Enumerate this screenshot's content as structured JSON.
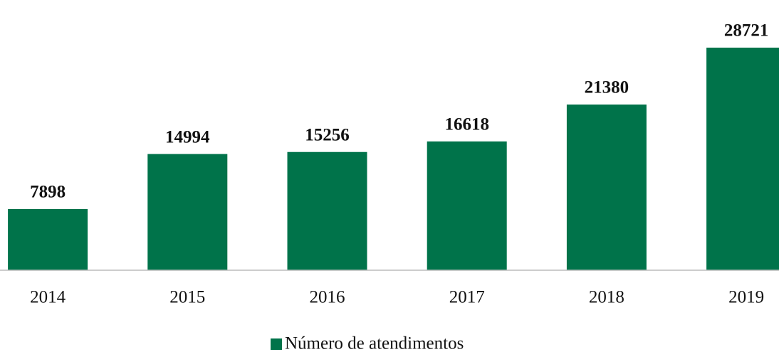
{
  "chart_data": {
    "type": "bar",
    "categories": [
      "2014",
      "2015",
      "2016",
      "2017",
      "2018",
      "2019"
    ],
    "series": [
      {
        "name": "Número de atendimentos",
        "color": "#00734a",
        "values": [
          7898,
          14994,
          15256,
          16618,
          21380,
          28721
        ]
      }
    ],
    "legend": "bottom"
  }
}
